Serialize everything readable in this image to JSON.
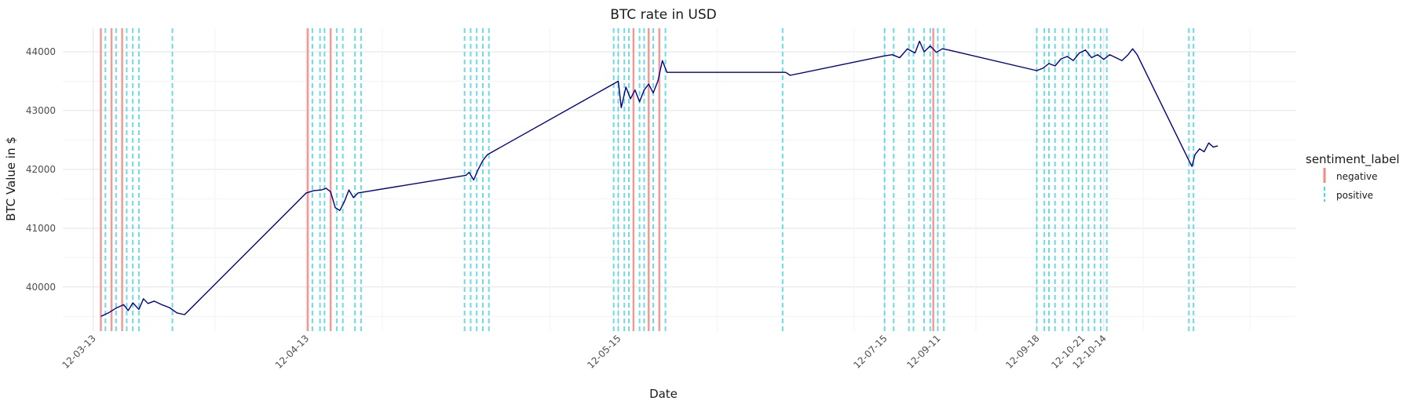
{
  "chart_data": {
    "type": "line",
    "title": "BTC rate in USD",
    "xlabel": "Date",
    "ylabel": "BTC Value in $",
    "ylim": [
      39250,
      44400
    ],
    "x_tick_labels": [
      "12-03-13",
      "12-04-13",
      "12-05-15",
      "12-07-15",
      "12-09-11",
      "12-09-18",
      "12-10-21",
      "12-10-14"
    ],
    "y_ticks": [
      40000,
      41000,
      42000,
      43000,
      44000
    ],
    "grid": true,
    "legend_position": "right",
    "legend": {
      "title": "sentiment_label",
      "entries": [
        {
          "label": "negative",
          "color": "#f08a84",
          "style": "solid"
        },
        {
          "label": "positive",
          "color": "#4fd6e0",
          "style": "dashed"
        }
      ]
    },
    "series": [
      {
        "color": "#00008b",
        "points": [
          [
            0.5,
            39500
          ],
          [
            1.0,
            39560
          ],
          [
            1.5,
            39640
          ],
          [
            2.0,
            39700
          ],
          [
            2.3,
            39600
          ],
          [
            2.6,
            39730
          ],
          [
            3.0,
            39620
          ],
          [
            3.3,
            39800
          ],
          [
            3.6,
            39720
          ],
          [
            4.0,
            39760
          ],
          [
            4.5,
            39700
          ],
          [
            5.0,
            39650
          ],
          [
            5.5,
            39560
          ],
          [
            6.0,
            39530
          ],
          [
            14.0,
            41600
          ],
          [
            14.5,
            41640
          ],
          [
            15.0,
            41650
          ],
          [
            15.3,
            41680
          ],
          [
            15.6,
            41620
          ],
          [
            15.9,
            41350
          ],
          [
            16.2,
            41300
          ],
          [
            16.5,
            41450
          ],
          [
            16.8,
            41650
          ],
          [
            17.1,
            41520
          ],
          [
            17.4,
            41600
          ],
          [
            24.5,
            41900
          ],
          [
            24.7,
            41950
          ],
          [
            25.0,
            41820
          ],
          [
            25.3,
            42000
          ],
          [
            25.6,
            42150
          ],
          [
            25.9,
            42250
          ],
          [
            34.5,
            43500
          ],
          [
            34.7,
            43050
          ],
          [
            35.0,
            43400
          ],
          [
            35.3,
            43200
          ],
          [
            35.6,
            43350
          ],
          [
            35.9,
            43150
          ],
          [
            36.2,
            43350
          ],
          [
            36.5,
            43450
          ],
          [
            36.8,
            43300
          ],
          [
            37.1,
            43500
          ],
          [
            37.4,
            43850
          ],
          [
            37.7,
            43650
          ],
          [
            45.5,
            43650
          ],
          [
            45.8,
            43600
          ],
          [
            52.0,
            43930
          ],
          [
            52.5,
            43950
          ],
          [
            53.0,
            43900
          ],
          [
            53.5,
            44050
          ],
          [
            54.0,
            43980
          ],
          [
            54.3,
            44180
          ],
          [
            54.6,
            44000
          ],
          [
            55.0,
            44100
          ],
          [
            55.4,
            43990
          ],
          [
            55.8,
            44050
          ],
          [
            56.2,
            44030
          ],
          [
            62.0,
            43680
          ],
          [
            62.4,
            43720
          ],
          [
            62.8,
            43800
          ],
          [
            63.2,
            43760
          ],
          [
            63.6,
            43880
          ],
          [
            64.0,
            43920
          ],
          [
            64.4,
            43850
          ],
          [
            64.8,
            43980
          ],
          [
            65.2,
            44030
          ],
          [
            65.6,
            43900
          ],
          [
            66.0,
            43950
          ],
          [
            66.4,
            43870
          ],
          [
            66.8,
            43950
          ],
          [
            67.2,
            43900
          ],
          [
            67.6,
            43850
          ],
          [
            68.0,
            43950
          ],
          [
            68.3,
            44050
          ],
          [
            68.6,
            43950
          ],
          [
            72.0,
            42150
          ],
          [
            72.2,
            42050
          ],
          [
            72.4,
            42250
          ],
          [
            72.7,
            42350
          ],
          [
            73.0,
            42300
          ],
          [
            73.3,
            42450
          ],
          [
            73.6,
            42380
          ],
          [
            73.9,
            42400
          ]
        ]
      }
    ],
    "sentiment_lines": {
      "negative": [
        0.5,
        1.2,
        1.9,
        14.1,
        15.6,
        35.5,
        36.5,
        37.2,
        55.2
      ],
      "positive": [
        0.8,
        1.5,
        2.2,
        2.6,
        3.0,
        5.2,
        14.4,
        14.9,
        15.2,
        16.0,
        16.4,
        17.2,
        17.6,
        24.4,
        24.8,
        25.2,
        25.6,
        26.0,
        34.2,
        34.5,
        34.9,
        35.2,
        35.9,
        36.2,
        36.8,
        37.6,
        45.3,
        52.0,
        52.6,
        53.6,
        53.9,
        54.6,
        55.0,
        55.5,
        55.9,
        62.0,
        62.5,
        62.8,
        63.2,
        63.7,
        64.1,
        64.6,
        65.0,
        65.4,
        65.8,
        66.2,
        66.6,
        72.0,
        72.3
      ]
    }
  }
}
